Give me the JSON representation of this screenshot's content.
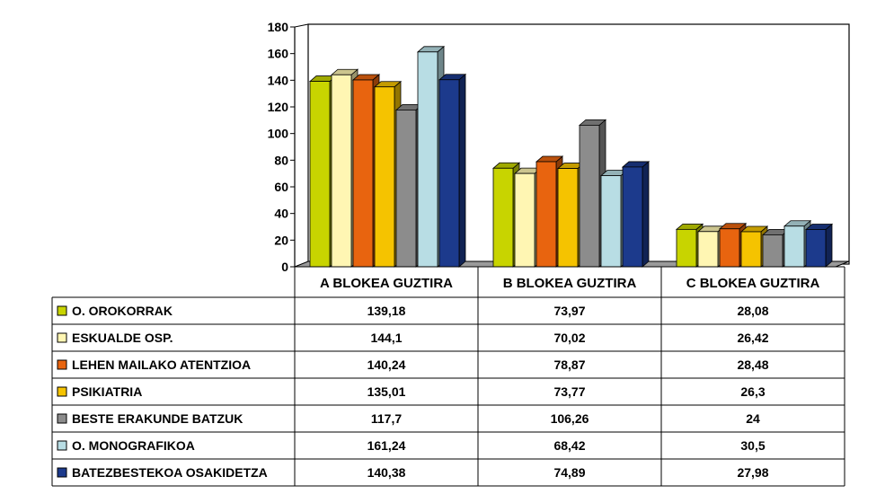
{
  "chart_data": {
    "type": "bar",
    "categories": [
      "A BLOKEA GUZTIRA",
      "B BLOKEA GUZTIRA",
      "C BLOKEA GUZTIRA"
    ],
    "series": [
      {
        "name": "O. OROKORRAK",
        "values": [
          "139,18",
          "73,97",
          "28,08"
        ],
        "color": "#c8d400"
      },
      {
        "name": "ESKUALDE OSP.",
        "values": [
          "144,1",
          "70,02",
          "26,42"
        ],
        "color": "#fff6b3"
      },
      {
        "name": "LEHEN MAILAKO ATENTZIOA",
        "values": [
          "140,24",
          "78,87",
          "28,48"
        ],
        "color": "#e8640f"
      },
      {
        "name": "PSIKIATRIA",
        "values": [
          "135,01",
          "73,77",
          "26,3"
        ],
        "color": "#f5c300"
      },
      {
        "name": "BESTE ERAKUNDE BATZUK",
        "values": [
          "117,7",
          "106,26",
          "24"
        ],
        "color": "#8c8c8c"
      },
      {
        "name": "O. MONOGRAFIKOA",
        "values": [
          "161,24",
          "68,42",
          "30,5"
        ],
        "color": "#b8dde4"
      },
      {
        "name": "BATEZBESTEKOA OSAKIDETZA",
        "values": [
          "140,38",
          "74,89",
          "27,98"
        ],
        "color": "#1c3a8c"
      }
    ],
    "ylim": [
      0,
      180
    ],
    "yticks": [
      "0",
      "20",
      "40",
      "60",
      "80",
      "100",
      "120",
      "140",
      "160",
      "180"
    ],
    "grid": false,
    "legend": "data-table"
  }
}
